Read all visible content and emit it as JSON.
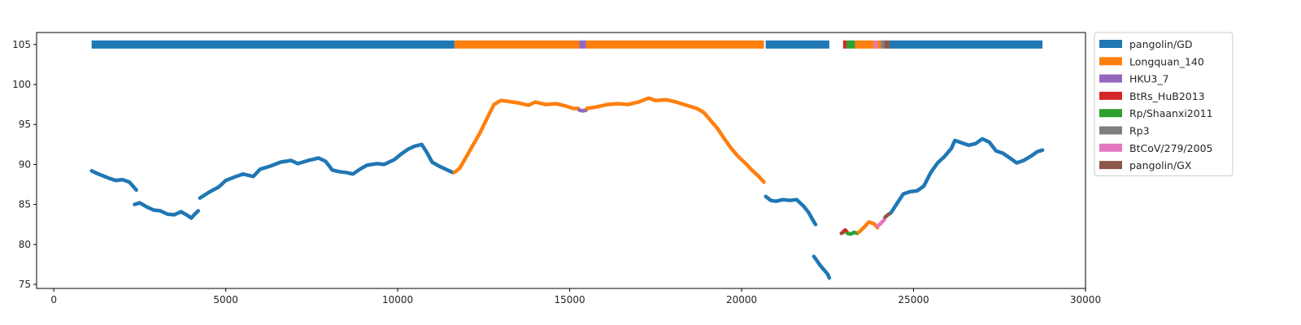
{
  "chart_data": {
    "type": "scatter",
    "title": "",
    "xlabel": "",
    "ylabel": "",
    "xlim": [
      -500,
      30000
    ],
    "ylim": [
      74.5,
      106.5
    ],
    "xticks": [
      0,
      5000,
      10000,
      15000,
      20000,
      25000,
      30000
    ],
    "yticks": [
      75,
      80,
      85,
      90,
      95,
      100,
      105
    ],
    "grid": false,
    "legend_position": "outside-right-top",
    "legend": [
      {
        "name": "pangolin/GD",
        "color": "#1f77b4"
      },
      {
        "name": "Longquan_140",
        "color": "#ff7f0e"
      },
      {
        "name": "HKU3_7",
        "color": "#9467bd"
      },
      {
        "name": "BtRs_HuB2013",
        "color": "#d62728"
      },
      {
        "name": "Rp/Shaanxi2011",
        "color": "#2ca02c"
      },
      {
        "name": "Rp3",
        "color": "#7f7f7f"
      },
      {
        "name": "BtCoV/279/2005",
        "color": "#e377c2"
      },
      {
        "name": "pangolin/GX",
        "color": "#8c564b"
      }
    ],
    "top_bar": {
      "y": 105,
      "segments": [
        {
          "start": 1100,
          "end": 11650,
          "series": "pangolin/GD"
        },
        {
          "start": 11650,
          "end": 15280,
          "series": "Longquan_140"
        },
        {
          "start": 15280,
          "end": 15480,
          "series": "HKU3_7"
        },
        {
          "start": 15480,
          "end": 20650,
          "series": "Longquan_140"
        },
        {
          "start": 20700,
          "end": 22550,
          "series": "pangolin/GD"
        },
        {
          "start": 22950,
          "end": 23050,
          "series": "BtRs_HuB2013"
        },
        {
          "start": 23050,
          "end": 23300,
          "series": "Rp/Shaanxi2011"
        },
        {
          "start": 23300,
          "end": 23850,
          "series": "Longquan_140"
        },
        {
          "start": 23850,
          "end": 23950,
          "series": "BtCoV/279/2005"
        },
        {
          "start": 23950,
          "end": 24050,
          "series": "Longquan_140"
        },
        {
          "start": 24050,
          "end": 24150,
          "series": "Rp3"
        },
        {
          "start": 24150,
          "end": 24300,
          "series": "pangolin/GX"
        },
        {
          "start": 24300,
          "end": 28750,
          "series": "pangolin/GD"
        }
      ]
    },
    "curve_segments": [
      {
        "series": "pangolin/GD",
        "points": [
          [
            1100,
            89.2
          ],
          [
            1300,
            88.8
          ],
          [
            1600,
            88.3
          ],
          [
            1800,
            88.0
          ],
          [
            2000,
            88.1
          ],
          [
            2200,
            87.8
          ],
          [
            2300,
            87.3
          ],
          [
            2400,
            86.8
          ]
        ]
      },
      {
        "series": "pangolin/GD",
        "points": [
          [
            2350,
            85.0
          ],
          [
            2500,
            85.2
          ],
          [
            2700,
            84.7
          ],
          [
            2900,
            84.3
          ],
          [
            3100,
            84.2
          ],
          [
            3300,
            83.8
          ],
          [
            3500,
            83.7
          ],
          [
            3700,
            84.1
          ],
          [
            3900,
            83.6
          ],
          [
            4000,
            83.3
          ],
          [
            4100,
            83.8
          ],
          [
            4200,
            84.2
          ]
        ]
      },
      {
        "series": "pangolin/GD",
        "points": [
          [
            4250,
            85.8
          ],
          [
            4500,
            86.5
          ],
          [
            4800,
            87.2
          ],
          [
            5000,
            88.0
          ],
          [
            5300,
            88.5
          ],
          [
            5500,
            88.8
          ],
          [
            5800,
            88.5
          ],
          [
            6000,
            89.4
          ],
          [
            6300,
            89.8
          ],
          [
            6600,
            90.3
          ],
          [
            6900,
            90.5
          ],
          [
            7100,
            90.1
          ],
          [
            7400,
            90.5
          ],
          [
            7700,
            90.8
          ],
          [
            7900,
            90.4
          ],
          [
            8100,
            89.3
          ],
          [
            8300,
            89.1
          ],
          [
            8500,
            89.0
          ],
          [
            8700,
            88.8
          ],
          [
            8900,
            89.4
          ],
          [
            9100,
            89.9
          ],
          [
            9400,
            90.1
          ],
          [
            9600,
            90.0
          ],
          [
            9900,
            90.6
          ],
          [
            10100,
            91.3
          ],
          [
            10300,
            91.9
          ],
          [
            10500,
            92.3
          ],
          [
            10700,
            92.5
          ],
          [
            10850,
            91.5
          ],
          [
            11000,
            90.3
          ],
          [
            11200,
            89.8
          ],
          [
            11400,
            89.4
          ],
          [
            11600,
            89.0
          ]
        ]
      },
      {
        "series": "Longquan_140",
        "points": [
          [
            11650,
            89.0
          ],
          [
            11800,
            89.5
          ],
          [
            12000,
            91.0
          ],
          [
            12200,
            92.5
          ],
          [
            12400,
            94.0
          ],
          [
            12600,
            95.8
          ],
          [
            12800,
            97.5
          ],
          [
            13000,
            98.0
          ],
          [
            13200,
            97.9
          ],
          [
            13500,
            97.7
          ],
          [
            13800,
            97.4
          ],
          [
            14000,
            97.8
          ],
          [
            14300,
            97.5
          ],
          [
            14600,
            97.6
          ],
          [
            14900,
            97.3
          ],
          [
            15100,
            97.0
          ],
          [
            15250,
            97.0
          ]
        ]
      },
      {
        "series": "HKU3_7",
        "points": [
          [
            15280,
            96.8
          ],
          [
            15380,
            96.7
          ],
          [
            15480,
            96.8
          ]
        ]
      },
      {
        "series": "Longquan_140",
        "points": [
          [
            15500,
            97.0
          ],
          [
            15800,
            97.2
          ],
          [
            16100,
            97.5
          ],
          [
            16400,
            97.6
          ],
          [
            16700,
            97.5
          ],
          [
            17000,
            97.8
          ],
          [
            17300,
            98.3
          ],
          [
            17500,
            98.0
          ],
          [
            17800,
            98.1
          ],
          [
            18100,
            97.8
          ],
          [
            18400,
            97.4
          ],
          [
            18700,
            97.0
          ],
          [
            18900,
            96.5
          ],
          [
            19100,
            95.5
          ],
          [
            19300,
            94.5
          ],
          [
            19500,
            93.2
          ],
          [
            19700,
            92.0
          ],
          [
            19900,
            91.0
          ],
          [
            20100,
            90.2
          ],
          [
            20300,
            89.3
          ],
          [
            20500,
            88.5
          ],
          [
            20650,
            87.8
          ]
        ]
      },
      {
        "series": "pangolin/GD",
        "points": [
          [
            20700,
            86.0
          ],
          [
            20850,
            85.5
          ],
          [
            21000,
            85.4
          ],
          [
            21200,
            85.6
          ],
          [
            21400,
            85.5
          ],
          [
            21600,
            85.6
          ],
          [
            21800,
            84.8
          ],
          [
            21950,
            84.0
          ],
          [
            22050,
            83.2
          ],
          [
            22150,
            82.5
          ]
        ]
      },
      {
        "series": "pangolin/GD",
        "points": [
          [
            22100,
            78.5
          ],
          [
            22200,
            77.9
          ],
          [
            22300,
            77.3
          ],
          [
            22400,
            76.8
          ],
          [
            22500,
            76.3
          ],
          [
            22550,
            75.8
          ]
        ]
      },
      {
        "series": "pangolin/GX",
        "points": [
          [
            22900,
            81.4
          ],
          [
            22950,
            81.5
          ]
        ]
      },
      {
        "series": "BtRs_HuB2013",
        "points": [
          [
            22960,
            81.6
          ],
          [
            23010,
            81.8
          ],
          [
            23060,
            81.6
          ]
        ]
      },
      {
        "series": "Rp/Shaanxi2011",
        "points": [
          [
            23070,
            81.4
          ],
          [
            23170,
            81.3
          ],
          [
            23270,
            81.5
          ],
          [
            23370,
            81.4
          ]
        ]
      },
      {
        "series": "Longquan_140",
        "points": [
          [
            23400,
            81.5
          ],
          [
            23550,
            82.1
          ],
          [
            23700,
            82.8
          ],
          [
            23850,
            82.6
          ],
          [
            23950,
            82.1
          ]
        ]
      },
      {
        "series": "BtCoV/279/2005",
        "points": [
          [
            23960,
            82.3
          ],
          [
            24060,
            82.7
          ],
          [
            24150,
            83.1
          ]
        ]
      },
      {
        "series": "pangolin/GX",
        "points": [
          [
            24170,
            83.4
          ],
          [
            24250,
            83.7
          ],
          [
            24320,
            83.9
          ]
        ]
      },
      {
        "series": "pangolin/GD",
        "points": [
          [
            24350,
            84.0
          ],
          [
            24500,
            85.0
          ],
          [
            24700,
            86.3
          ],
          [
            24900,
            86.6
          ],
          [
            25100,
            86.7
          ],
          [
            25300,
            87.3
          ],
          [
            25500,
            89.0
          ],
          [
            25700,
            90.2
          ],
          [
            25900,
            91.0
          ],
          [
            26100,
            92.0
          ],
          [
            26200,
            93.0
          ],
          [
            26400,
            92.7
          ],
          [
            26600,
            92.4
          ],
          [
            26800,
            92.6
          ],
          [
            27000,
            93.2
          ],
          [
            27200,
            92.8
          ],
          [
            27400,
            91.7
          ],
          [
            27600,
            91.4
          ],
          [
            27800,
            90.8
          ],
          [
            28000,
            90.2
          ],
          [
            28200,
            90.5
          ],
          [
            28400,
            91.0
          ],
          [
            28600,
            91.6
          ],
          [
            28750,
            91.8
          ]
        ]
      }
    ]
  }
}
